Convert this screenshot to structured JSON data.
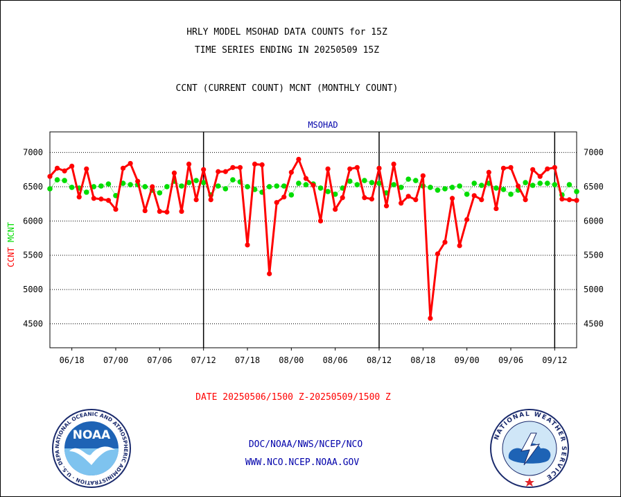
{
  "header": {
    "line1": "HRLY MODEL MSOHAD DATA COUNTS for 15Z",
    "line2": "TIME SERIES ENDING IN 20250509 15Z",
    "line3": "CCNT (CURRENT COUNT) MCNT (MONTHLY COUNT)"
  },
  "footer": {
    "date_range": "DATE 20250506/1500 Z-20250509/1500 Z",
    "org_path": "DOC/NOAA/NWS/NCEP/NCO",
    "website": "WWW.NCO.NCEP.NOAA.GOV"
  },
  "logos": {
    "noaa": "NOAA",
    "noaa_ring": "NATIONAL OCEANIC AND ATMOSPHERIC ADMINISTRATION · U.S. DEPARTMENT OF COMMERCE",
    "nws_ring": "NATIONAL WEATHER SERVICE"
  },
  "colors": {
    "ccnt": "#ff0000",
    "mcnt": "#00dd00",
    "title": "#0000aa",
    "footer": "#0000aa"
  },
  "chart_data": {
    "type": "line",
    "title": "MSOHAD",
    "ylabel_ccnt": "CCNT",
    "ylabel_mcnt": "MCNT",
    "ylim": [
      4150,
      7300
    ],
    "y_ticks": [
      4500,
      5000,
      5500,
      6000,
      6500,
      7000
    ],
    "y_tick_labels": [
      "4500",
      "5000",
      "5500",
      "6000",
      "6500",
      "7000"
    ],
    "grid": true,
    "x_tick_labels": [
      "06/18",
      "07/00",
      "07/06",
      "07/12",
      "07/18",
      "08/00",
      "08/06",
      "08/12",
      "08/18",
      "09/00",
      "09/06",
      "09/12"
    ],
    "day_boundaries_at_point_index": [
      21,
      45,
      69
    ],
    "series": [
      {
        "name": "CCNT",
        "values": [
          6650,
          6770,
          6730,
          6800,
          6350,
          6760,
          6330,
          6320,
          6300,
          6170,
          6770,
          6840,
          6580,
          6150,
          6500,
          6140,
          6130,
          6700,
          6140,
          6830,
          6310,
          6750,
          6310,
          6720,
          6720,
          6780,
          6780,
          5650,
          6830,
          6820,
          5230,
          6270,
          6350,
          6710,
          6900,
          6620,
          6520,
          6000,
          6760,
          6170,
          6340,
          6760,
          6780,
          6340,
          6320,
          6770,
          6220,
          6830,
          6260,
          6360,
          6310,
          6660,
          4580,
          5520,
          5690,
          6330,
          5640,
          6020,
          6370,
          6310,
          6710,
          6180,
          6770,
          6780,
          6510,
          6310,
          6750,
          6650,
          6760,
          6780,
          6320,
          6310,
          6300
        ]
      },
      {
        "name": "MCNT",
        "values": [
          6470,
          6600,
          6590,
          6490,
          6480,
          6420,
          6500,
          6510,
          6540,
          6370,
          6550,
          6530,
          6530,
          6500,
          6450,
          6410,
          6500,
          6580,
          6510,
          6560,
          6590,
          6560,
          6380,
          6510,
          6470,
          6600,
          6570,
          6500,
          6460,
          6420,
          6500,
          6510,
          6510,
          6380,
          6550,
          6530,
          6540,
          6480,
          6430,
          6390,
          6480,
          6580,
          6530,
          6590,
          6560,
          6550,
          6410,
          6530,
          6490,
          6610,
          6590,
          6510,
          6490,
          6450,
          6470,
          6490,
          6510,
          6390,
          6550,
          6520,
          6550,
          6480,
          6460,
          6390,
          6450,
          6560,
          6520,
          6550,
          6550,
          6530,
          6380,
          6530,
          6430
        ]
      }
    ]
  }
}
